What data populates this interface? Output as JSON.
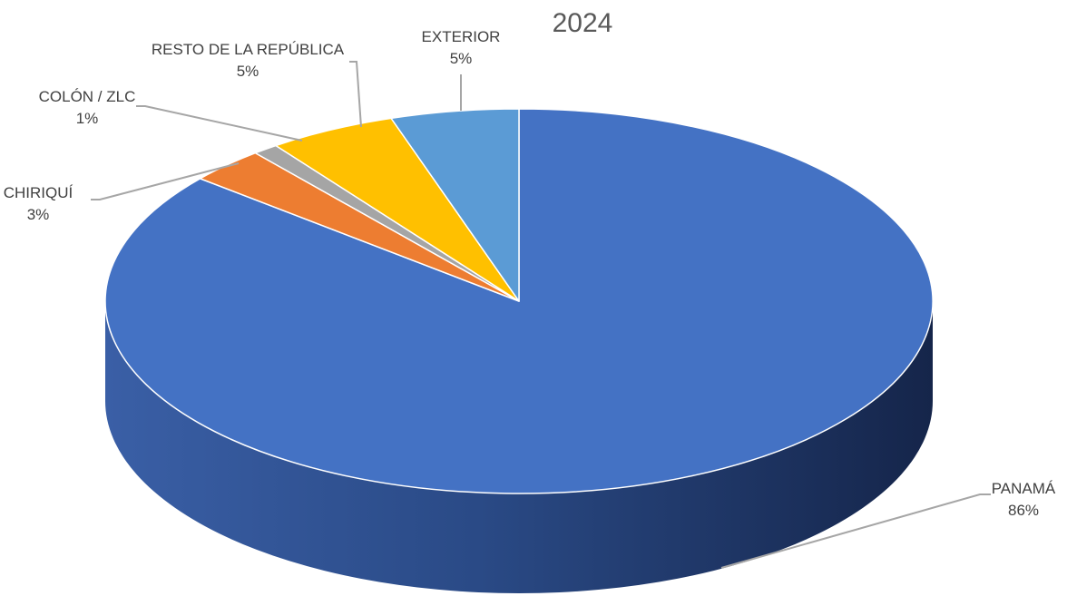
{
  "chart_data": {
    "type": "pie",
    "title": "2024",
    "slices": [
      {
        "name": "PANAMÁ",
        "value": 86,
        "label": "86%",
        "color": "#4472C4",
        "side_color": "#2F5597",
        "side_dark": "#1a2a4f"
      },
      {
        "name": "CHIRIQUÍ",
        "value": 3,
        "label": "3%",
        "color": "#ED7D31",
        "side_color": "#ED7D31",
        "side_dark": "#ED7D31"
      },
      {
        "name": "COLÓN / ZLC",
        "value": 1,
        "label": "1%",
        "color": "#A5A5A5",
        "side_color": "#A5A5A5",
        "side_dark": "#A5A5A5"
      },
      {
        "name": "RESTO DE LA REPÚBLICA",
        "value": 5,
        "label": "5%",
        "color": "#FFC000",
        "side_color": "#FFC000",
        "side_dark": "#FFC000"
      },
      {
        "name": "EXTERIOR",
        "value": 5,
        "label": "5%",
        "color": "#5B9BD5",
        "side_color": "#5B9BD5",
        "side_dark": "#5B9BD5"
      }
    ],
    "legend": "none",
    "style": "3d"
  }
}
